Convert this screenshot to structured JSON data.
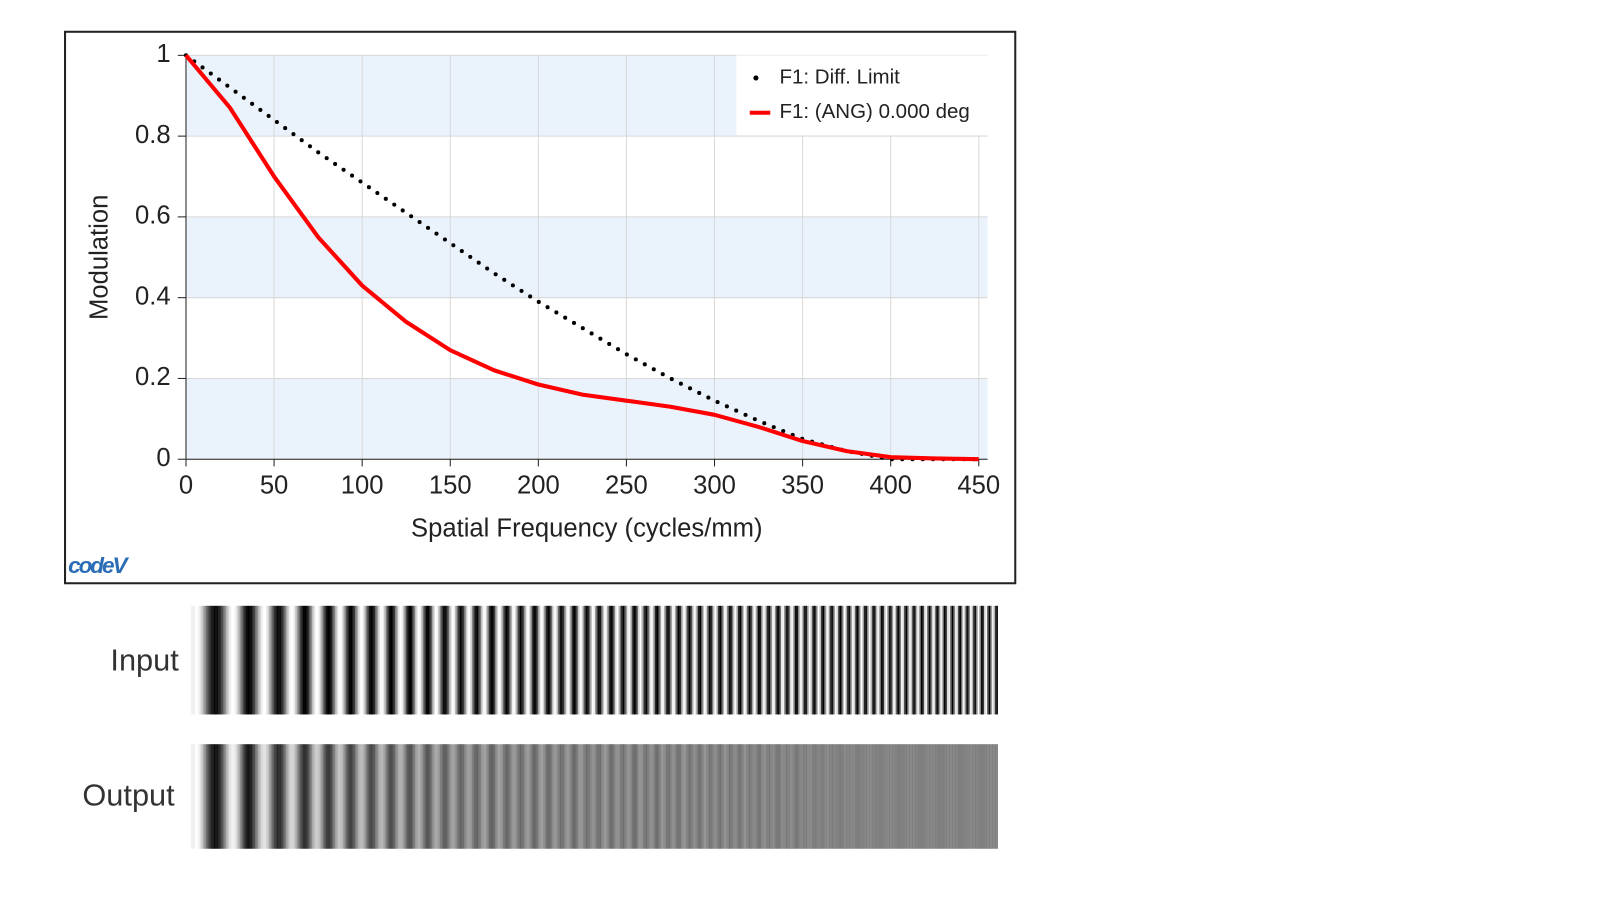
{
  "chart_data": {
    "type": "line",
    "x_label": "Spatial Frequency (cycles/mm)",
    "y_label": "Modulation",
    "x": [
      0,
      25,
      50,
      75,
      100,
      125,
      150,
      175,
      200,
      225,
      250,
      275,
      300,
      325,
      350,
      375,
      400,
      425,
      450
    ],
    "series": [
      {
        "name": "F1: Diff. Limit",
        "color": "#000000",
        "style": "dotted",
        "values": [
          1,
          0.92,
          0.84,
          0.76,
          0.685,
          0.61,
          0.535,
          0.46,
          0.39,
          0.325,
          0.26,
          0.2,
          0.145,
          0.095,
          0.05,
          0.02,
          0,
          0,
          0
        ]
      },
      {
        "name": "F1: (ANG) 0.000 deg",
        "color": "#ff0000",
        "style": "solid",
        "values": [
          1,
          0.87,
          0.7,
          0.55,
          0.43,
          0.34,
          0.27,
          0.22,
          0.185,
          0.16,
          0.145,
          0.13,
          0.11,
          0.08,
          0.045,
          0.02,
          0.005,
          0.002,
          0
        ]
      }
    ],
    "xlim": [
      0,
      455
    ],
    "ylim": [
      0,
      1
    ],
    "xticks": [
      0,
      50,
      100,
      150,
      200,
      250,
      300,
      350,
      400,
      450
    ],
    "yticks": [
      0,
      0.2,
      0.4,
      0.6,
      0.8,
      1
    ],
    "grid": true,
    "legend": "upper-right",
    "band_color": "#eaf3fc"
  },
  "logo": "codeV",
  "grating": {
    "input_label": "Input",
    "output_label": "Output"
  }
}
